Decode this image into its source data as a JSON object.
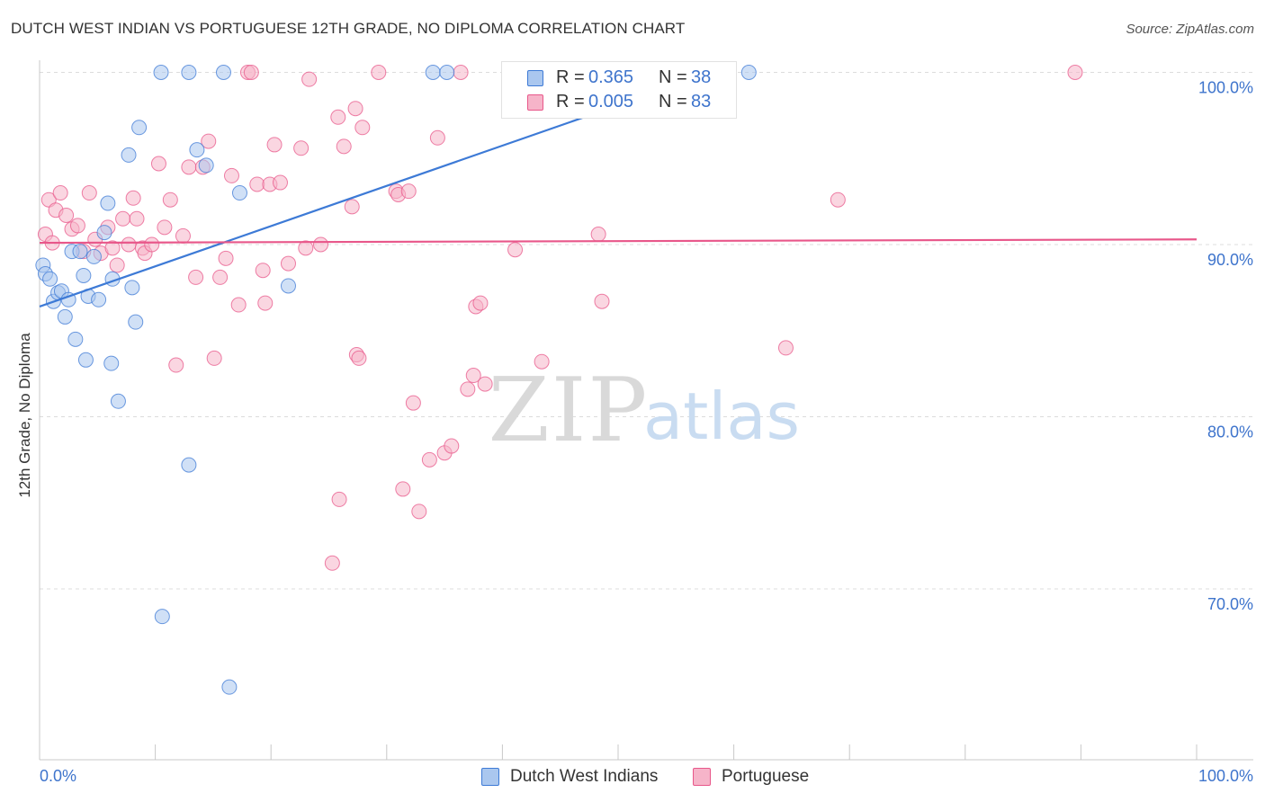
{
  "title": "DUTCH WEST INDIAN VS PORTUGUESE 12TH GRADE, NO DIPLOMA CORRELATION CHART",
  "source": "Source: ZipAtlas.com",
  "watermark": {
    "zip": "ZIP",
    "atlas": "atlas"
  },
  "colors": {
    "blue": "#3d7ad6",
    "blue_fill": "#aac7ef",
    "blue_text": "#3e74cc",
    "pink": "#e8578a",
    "pink_fill": "#f6b4c9",
    "grid": "#dcdcdc",
    "axis": "#c8c8c8"
  },
  "legend": [
    {
      "r_label": "R =",
      "r_value": "0.365",
      "n_label": "N =",
      "n_value": "38"
    },
    {
      "r_label": "R =",
      "r_value": "0.005",
      "n_label": "N =",
      "n_value": "83"
    }
  ],
  "bottom_legend": [
    "Dutch West Indians",
    "Portuguese"
  ],
  "chart_data": {
    "type": "scatter",
    "title": "DUTCH WEST INDIAN VS PORTUGUESE 12TH GRADE, NO DIPLOMA CORRELATION CHART",
    "xlabel": "",
    "ylabel": "12th Grade, No Diploma",
    "xlim": [
      0,
      100
    ],
    "ylim": [
      59.5,
      101.5
    ],
    "x_tick_labels": [
      "0.0%",
      "100.0%"
    ],
    "y_ticks": [
      70,
      80,
      90,
      100
    ],
    "y_tick_labels": [
      "70.0%",
      "80.0%",
      "90.0%",
      "100.0%"
    ],
    "grid": true,
    "legend_position": "top-center",
    "series": [
      {
        "name": "Dutch West Indians",
        "r": 0.365,
        "n": 38,
        "trend": {
          "x": [
            0,
            56.5
          ],
          "y": [
            86.4,
            99.6
          ]
        },
        "points": [
          [
            0.3,
            88.8
          ],
          [
            0.5,
            88.3
          ],
          [
            0.9,
            88.0
          ],
          [
            1.2,
            86.7
          ],
          [
            1.6,
            87.2
          ],
          [
            1.9,
            87.3
          ],
          [
            2.2,
            85.8
          ],
          [
            2.5,
            86.8
          ],
          [
            2.8,
            89.6
          ],
          [
            3.1,
            84.5
          ],
          [
            3.5,
            89.6
          ],
          [
            3.8,
            88.2
          ],
          [
            4.0,
            83.3
          ],
          [
            4.2,
            87.0
          ],
          [
            4.7,
            89.3
          ],
          [
            5.1,
            86.8
          ],
          [
            5.6,
            90.7
          ],
          [
            5.9,
            92.4
          ],
          [
            6.2,
            83.1
          ],
          [
            6.3,
            88.0
          ],
          [
            6.8,
            80.9
          ],
          [
            7.7,
            95.2
          ],
          [
            8.0,
            87.5
          ],
          [
            8.3,
            85.5
          ],
          [
            8.6,
            96.8
          ],
          [
            10.5,
            100.0
          ],
          [
            10.6,
            68.4
          ],
          [
            12.9,
            100.0
          ],
          [
            12.9,
            77.2
          ],
          [
            13.6,
            95.5
          ],
          [
            14.4,
            94.6
          ],
          [
            15.9,
            100.0
          ],
          [
            16.4,
            64.3
          ],
          [
            17.3,
            93.0
          ],
          [
            21.5,
            87.6
          ],
          [
            34.0,
            100.0
          ],
          [
            35.2,
            100.0
          ],
          [
            61.3,
            100.0
          ]
        ]
      },
      {
        "name": "Portuguese",
        "r": 0.005,
        "n": 83,
        "trend": {
          "x": [
            0,
            100
          ],
          "y": [
            90.1,
            90.3
          ]
        },
        "points": [
          [
            0.5,
            90.6
          ],
          [
            0.8,
            92.6
          ],
          [
            1.1,
            90.1
          ],
          [
            1.4,
            92.0
          ],
          [
            1.8,
            93.0
          ],
          [
            2.3,
            91.7
          ],
          [
            2.8,
            90.9
          ],
          [
            3.3,
            91.1
          ],
          [
            3.8,
            89.6
          ],
          [
            4.3,
            93.0
          ],
          [
            4.8,
            90.3
          ],
          [
            5.3,
            89.5
          ],
          [
            5.9,
            91.0
          ],
          [
            6.3,
            89.8
          ],
          [
            6.7,
            88.8
          ],
          [
            7.2,
            91.5
          ],
          [
            7.7,
            90.0
          ],
          [
            8.1,
            92.7
          ],
          [
            8.4,
            91.5
          ],
          [
            8.9,
            89.8
          ],
          [
            9.1,
            89.5
          ],
          [
            9.7,
            90.0
          ],
          [
            10.3,
            94.7
          ],
          [
            10.8,
            91.0
          ],
          [
            11.3,
            92.6
          ],
          [
            11.8,
            83.0
          ],
          [
            12.4,
            90.5
          ],
          [
            12.9,
            94.5
          ],
          [
            13.5,
            88.1
          ],
          [
            14.1,
            94.5
          ],
          [
            14.6,
            96.0
          ],
          [
            15.1,
            83.4
          ],
          [
            15.6,
            88.1
          ],
          [
            16.1,
            89.2
          ],
          [
            16.6,
            94.0
          ],
          [
            17.2,
            86.5
          ],
          [
            18.0,
            100.0
          ],
          [
            18.3,
            100.0
          ],
          [
            18.8,
            93.5
          ],
          [
            19.3,
            88.5
          ],
          [
            19.5,
            86.6
          ],
          [
            19.9,
            93.5
          ],
          [
            20.3,
            95.8
          ],
          [
            20.8,
            93.6
          ],
          [
            21.5,
            88.9
          ],
          [
            22.6,
            95.6
          ],
          [
            23.0,
            89.8
          ],
          [
            23.3,
            99.6
          ],
          [
            24.3,
            90.0
          ],
          [
            25.3,
            71.5
          ],
          [
            25.8,
            97.4
          ],
          [
            25.9,
            75.2
          ],
          [
            26.3,
            95.7
          ],
          [
            27.0,
            92.2
          ],
          [
            27.3,
            97.9
          ],
          [
            27.4,
            83.6
          ],
          [
            27.6,
            83.4
          ],
          [
            27.9,
            96.8
          ],
          [
            29.3,
            100.0
          ],
          [
            30.8,
            93.1
          ],
          [
            31.0,
            92.9
          ],
          [
            31.4,
            75.8
          ],
          [
            31.9,
            93.1
          ],
          [
            32.3,
            80.8
          ],
          [
            32.8,
            74.5
          ],
          [
            33.7,
            77.5
          ],
          [
            34.4,
            96.2
          ],
          [
            35.0,
            77.9
          ],
          [
            35.6,
            78.3
          ],
          [
            36.4,
            100.0
          ],
          [
            37.0,
            81.6
          ],
          [
            37.5,
            82.4
          ],
          [
            37.7,
            86.4
          ],
          [
            38.1,
            86.6
          ],
          [
            38.5,
            81.9
          ],
          [
            41.1,
            89.7
          ],
          [
            43.4,
            83.2
          ],
          [
            47.6,
            100.0
          ],
          [
            48.3,
            90.6
          ],
          [
            48.6,
            86.7
          ],
          [
            64.5,
            84.0
          ],
          [
            69.0,
            92.6
          ],
          [
            89.5,
            100.0
          ]
        ]
      }
    ]
  }
}
